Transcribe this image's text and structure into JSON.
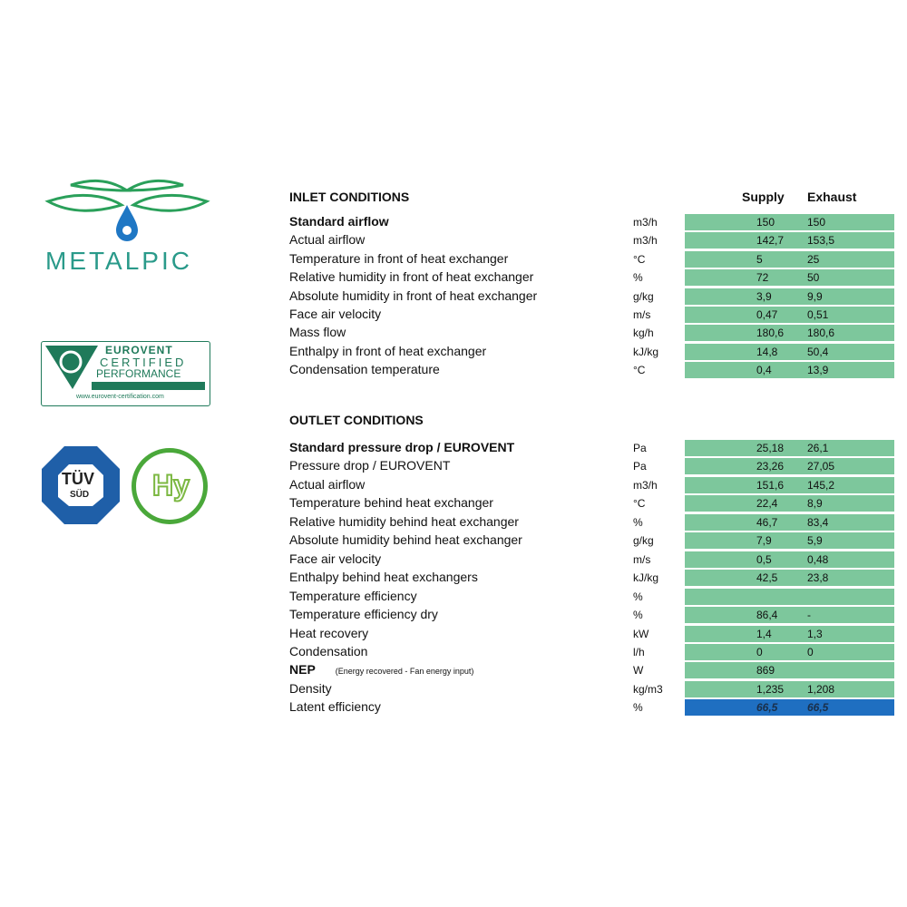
{
  "logos": {
    "metalpic": "METALPIC",
    "eurovent": [
      "EUROVENT",
      "CERTIFIED",
      "PERFORMANCE",
      "www.eurovent-certification.com"
    ],
    "tuv": [
      "TÜV",
      "SÜD"
    ],
    "hy": "Hy"
  },
  "colors": {
    "cell": "#7dc79c",
    "highlight": "#1f6fc1"
  },
  "columns": {
    "supply": "Supply",
    "exhaust": "Exhaust"
  },
  "inlet": {
    "title": "INLET CONDITIONS",
    "rows": [
      {
        "label": "Standard airflow",
        "bold": true,
        "unit": "m3/h",
        "supply": "150",
        "exhaust": "150"
      },
      {
        "label": "Actual airflow",
        "unit": "m3/h",
        "supply": "142,7",
        "exhaust": "153,5"
      },
      {
        "label": "Temperature in front of heat exchanger",
        "unit": "°C",
        "supply": "5",
        "exhaust": "25"
      },
      {
        "label": "Relative humidity in front of heat exchanger",
        "unit": "%",
        "supply": "72",
        "exhaust": "50"
      },
      {
        "label": "Absolute humidity in front of heat exchanger",
        "unit": "g/kg",
        "supply": "3,9",
        "exhaust": "9,9"
      },
      {
        "label": "Face air velocity",
        "unit": "m/s",
        "supply": "0,47",
        "exhaust": "0,51"
      },
      {
        "label": "Mass flow",
        "unit": "kg/h",
        "supply": "180,6",
        "exhaust": "180,6"
      },
      {
        "label": "Enthalpy in front of heat exchanger",
        "unit": "kJ/kg",
        "supply": "14,8",
        "exhaust": "50,4"
      },
      {
        "label": "Condensation temperature",
        "unit": "°C",
        "supply": "0,4",
        "exhaust": "13,9"
      }
    ]
  },
  "outlet": {
    "title": "OUTLET CONDITIONS",
    "rows": [
      {
        "label": "Standard pressure drop   / EUROVENT",
        "bold": true,
        "unit": "Pa",
        "supply": "25,18",
        "exhaust": "26,1"
      },
      {
        "label": "Pressure drop   / EUROVENT",
        "unit": "Pa",
        "supply": "23,26",
        "exhaust": "27,05"
      },
      {
        "label": "Actual airflow",
        "unit": "m3/h",
        "supply": "151,6",
        "exhaust": "145,2"
      },
      {
        "label": "Temperature behind heat exchanger",
        "unit": "°C",
        "supply": "22,4",
        "exhaust": "8,9"
      },
      {
        "label": "Relative humidity behind heat exchanger",
        "unit": "%",
        "supply": "46,7",
        "exhaust": "83,4"
      },
      {
        "label": "Absolute humidity behind heat exchanger",
        "unit": "g/kg",
        "supply": "7,9",
        "exhaust": "5,9"
      },
      {
        "label": "Face air velocity",
        "unit": "m/s",
        "supply": "0,5",
        "exhaust": "0,48"
      },
      {
        "label": "Enthalpy behind heat exchangers",
        "unit": "kJ/kg",
        "supply": "42,5",
        "exhaust": "23,8"
      },
      {
        "label": "Temperature efficiency",
        "unit": "%",
        "supply": "",
        "exhaust": ""
      },
      {
        "label": "Temperature efficiency dry",
        "unit": "%",
        "supply": "86,4",
        "exhaust": "-"
      },
      {
        "label": "Heat recovery",
        "unit": "kW",
        "supply": "1,4",
        "exhaust": "1,3"
      },
      {
        "label": "Condensation",
        "unit": "l/h",
        "supply": "0",
        "exhaust": "0"
      },
      {
        "label": "NEP",
        "bold": true,
        "note": "(Energy recovered - Fan energy input)",
        "unit": "W",
        "supply": "869",
        "exhaust": ""
      },
      {
        "label": "Density",
        "unit": "kg/m3",
        "supply": "1,235",
        "exhaust": "1,208"
      },
      {
        "label": "Latent efficiency",
        "unit": "%",
        "supply": "66,5",
        "exhaust": "66,5",
        "highlight": true
      }
    ]
  }
}
